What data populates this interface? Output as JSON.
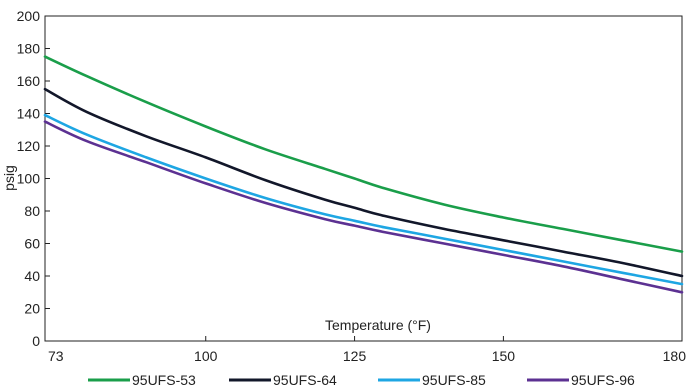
{
  "chart_data": {
    "type": "line",
    "xlabel": "Temperature (°F)",
    "ylabel": "psig",
    "xlim": [
      73,
      180
    ],
    "ylim": [
      0,
      200
    ],
    "x_ticks": [
      73,
      100,
      125,
      150,
      180
    ],
    "x_tick_labels": [
      "73",
      "100",
      "125",
      "150",
      "180"
    ],
    "y_ticks": [
      0,
      20,
      40,
      60,
      80,
      100,
      120,
      140,
      160,
      180,
      200
    ],
    "grid": false,
    "legend_position": "bottom",
    "series": [
      {
        "name": "95UFS-53",
        "color": "#1a9e4a",
        "x": [
          73,
          80,
          90,
          100,
          110,
          120,
          125,
          130,
          140,
          150,
          160,
          170,
          180
        ],
        "y": [
          175,
          163,
          147,
          132,
          118,
          106,
          100,
          94,
          84,
          76,
          69,
          62,
          55
        ]
      },
      {
        "name": "95UFS-64",
        "color": "#12172a",
        "x": [
          73,
          80,
          90,
          100,
          110,
          120,
          125,
          130,
          140,
          150,
          160,
          170,
          180
        ],
        "y": [
          155,
          141,
          126,
          113,
          99,
          87,
          82,
          77,
          69,
          62,
          55,
          48,
          40
        ]
      },
      {
        "name": "95UFS-85",
        "color": "#1ea6e3",
        "x": [
          73,
          80,
          90,
          100,
          110,
          120,
          125,
          130,
          140,
          150,
          160,
          170,
          180
        ],
        "y": [
          139,
          127,
          113,
          100,
          88,
          78,
          74,
          70,
          63,
          56,
          49,
          42,
          35
        ]
      },
      {
        "name": "95UFS-96",
        "color": "#5c3192",
        "x": [
          73,
          80,
          90,
          100,
          110,
          120,
          125,
          130,
          140,
          150,
          160,
          170,
          180
        ],
        "y": [
          135,
          123,
          110,
          97,
          85,
          75,
          71,
          67,
          60,
          53,
          46,
          38,
          30
        ]
      }
    ]
  }
}
